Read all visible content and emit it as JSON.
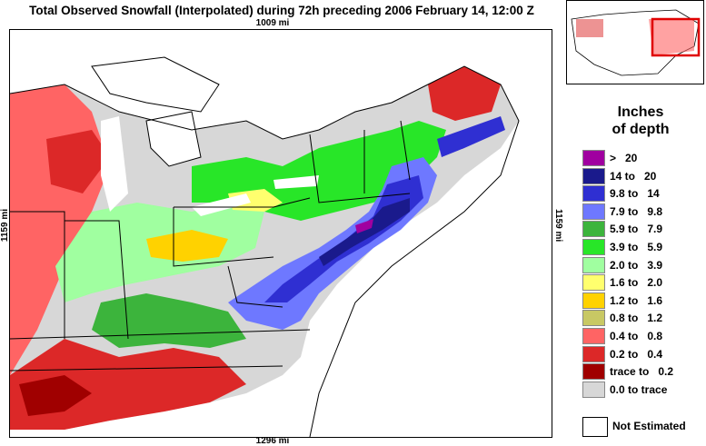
{
  "title": "Total Observed Snowfall (Interpolated) during 72h preceding 2006 February 14, 12:00 Z",
  "dimensions": {
    "top": "1009 mi",
    "bottom": "1296 mi",
    "left": "1159 mi",
    "right": "1159 mi"
  },
  "legend": {
    "title_line1": "Inches",
    "title_line2": "of depth",
    "items": [
      {
        "label": ">   20",
        "color": "#a000a0"
      },
      {
        "label": "14 to   20",
        "color": "#1a1a8c"
      },
      {
        "label": "9.8 to   14",
        "color": "#2f2fd2"
      },
      {
        "label": "7.9 to   9.8",
        "color": "#6e78ff"
      },
      {
        "label": "5.9 to   7.9",
        "color": "#3cb43c"
      },
      {
        "label": "3.9 to   5.9",
        "color": "#28e628"
      },
      {
        "label": "2.0 to   3.9",
        "color": "#a0ffa0"
      },
      {
        "label": "1.6 to   2.0",
        "color": "#ffff6e"
      },
      {
        "label": "1.2 to   1.6",
        "color": "#ffd200"
      },
      {
        "label": "0.8 to   1.2",
        "color": "#c8c864"
      },
      {
        "label": "0.4 to   0.8",
        "color": "#ff6464"
      },
      {
        "label": "0.2 to   0.4",
        "color": "#dc2828"
      },
      {
        "label": "trace to   0.2",
        "color": "#a00000"
      },
      {
        "label": "0.0 to trace",
        "color": "#d7d7d7"
      }
    ],
    "not_estimated": "Not Estimated"
  }
}
